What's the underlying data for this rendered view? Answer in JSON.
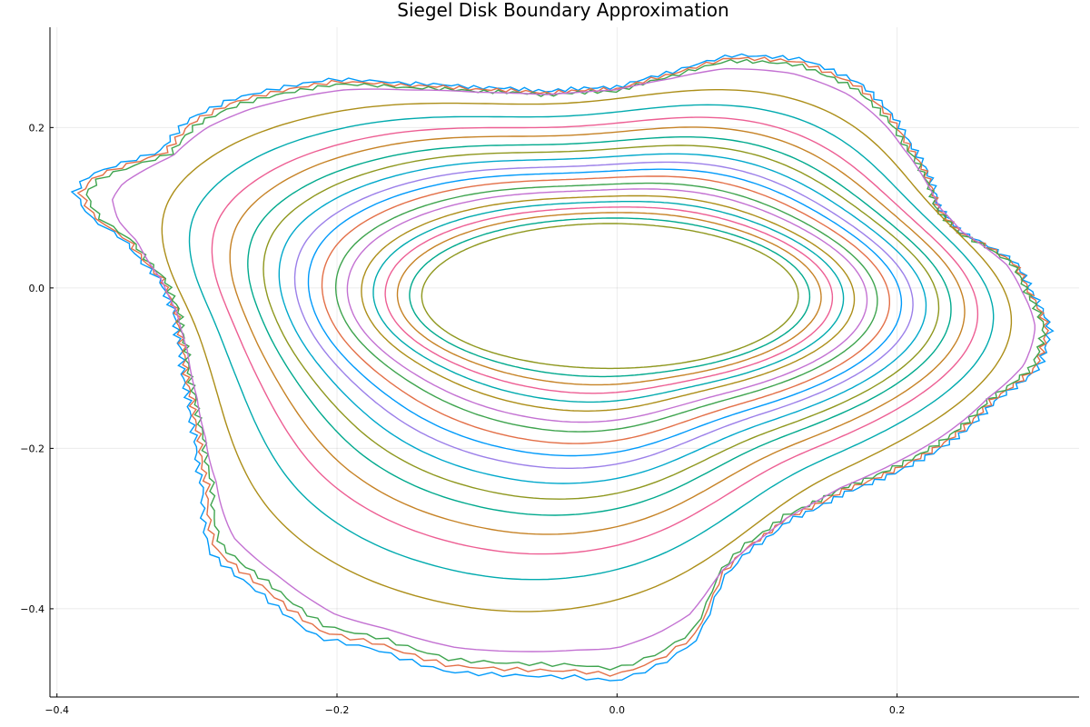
{
  "chart_data": {
    "type": "line",
    "title": "Siegel Disk Boundary Approximation",
    "xlabel": "",
    "ylabel": "",
    "xlim": [
      -0.405,
      0.33
    ],
    "ylim": [
      -0.51,
      0.325
    ],
    "x_ticks": [
      -0.4,
      -0.2,
      0.0,
      0.2
    ],
    "x_tick_labels": [
      "−0.4",
      "−0.2",
      "0.0",
      "0.2"
    ],
    "y_ticks": [
      -0.4,
      -0.2,
      0.0,
      0.2
    ],
    "y_tick_labels": [
      "−0.4",
      "−0.2",
      "0.0",
      "0.2"
    ],
    "grid": true,
    "legend": "none",
    "palette": [
      "#009AFA",
      "#E36F47",
      "#3EA44E",
      "#C371D2",
      "#AC8E18",
      "#00AAAE",
      "#ED5E93",
      "#C68225",
      "#00A98D",
      "#8E971D",
      "#00A8CB",
      "#9B7FE9"
    ],
    "center": [
      -0.005,
      -0.01
    ],
    "series": [
      {
        "level": 1.0
      },
      {
        "level": 0.99
      },
      {
        "level": 0.98
      },
      {
        "level": 0.965
      },
      {
        "level": 0.9
      },
      {
        "level": 0.84
      },
      {
        "level": 0.79
      },
      {
        "level": 0.75
      },
      {
        "level": 0.71
      },
      {
        "level": 0.675
      },
      {
        "level": 0.64
      },
      {
        "level": 0.605
      },
      {
        "level": 0.575
      },
      {
        "level": 0.545
      },
      {
        "level": 0.515
      },
      {
        "level": 0.49
      },
      {
        "level": 0.46
      },
      {
        "level": 0.435
      },
      {
        "level": 0.41
      },
      {
        "level": 0.385
      },
      {
        "level": 0.36
      },
      {
        "level": 0.335
      }
    ],
    "outer_boundary": [
      [
        0.29,
        -0.005
      ],
      [
        0.303,
        -0.05
      ],
      [
        0.295,
        -0.1
      ],
      [
        0.265,
        -0.14
      ],
      [
        0.235,
        -0.19
      ],
      [
        0.195,
        -0.23
      ],
      [
        0.16,
        -0.255
      ],
      [
        0.12,
        -0.29
      ],
      [
        0.09,
        -0.33
      ],
      [
        0.075,
        -0.36
      ],
      [
        0.07,
        -0.38
      ],
      [
        0.055,
        -0.44
      ],
      [
        0.03,
        -0.47
      ],
      [
        0.0,
        -0.49
      ],
      [
        -0.03,
        -0.485
      ],
      [
        -0.07,
        -0.483
      ],
      [
        -0.12,
        -0.478
      ],
      [
        -0.17,
        -0.45
      ],
      [
        -0.21,
        -0.435
      ],
      [
        -0.25,
        -0.38
      ],
      [
        -0.285,
        -0.33
      ],
      [
        -0.29,
        -0.25
      ],
      [
        -0.295,
        -0.19
      ],
      [
        -0.3,
        -0.14
      ],
      [
        -0.305,
        -0.08
      ],
      [
        -0.31,
        -0.03
      ],
      [
        -0.32,
        0.01
      ],
      [
        -0.345,
        0.06
      ],
      [
        -0.37,
        0.09
      ],
      [
        -0.38,
        0.12
      ],
      [
        -0.37,
        0.14
      ],
      [
        -0.32,
        0.17
      ],
      [
        -0.3,
        0.21
      ],
      [
        -0.27,
        0.235
      ],
      [
        -0.2,
        0.26
      ],
      [
        -0.15,
        0.255
      ],
      [
        -0.1,
        0.25
      ],
      [
        -0.05,
        0.245
      ],
      [
        0.0,
        0.25
      ],
      [
        0.04,
        0.27
      ],
      [
        0.08,
        0.29
      ],
      [
        0.13,
        0.285
      ],
      [
        0.17,
        0.255
      ],
      [
        0.195,
        0.21
      ],
      [
        0.205,
        0.18
      ],
      [
        0.225,
        0.1
      ],
      [
        0.24,
        0.07
      ],
      [
        0.28,
        0.03
      ]
    ]
  }
}
